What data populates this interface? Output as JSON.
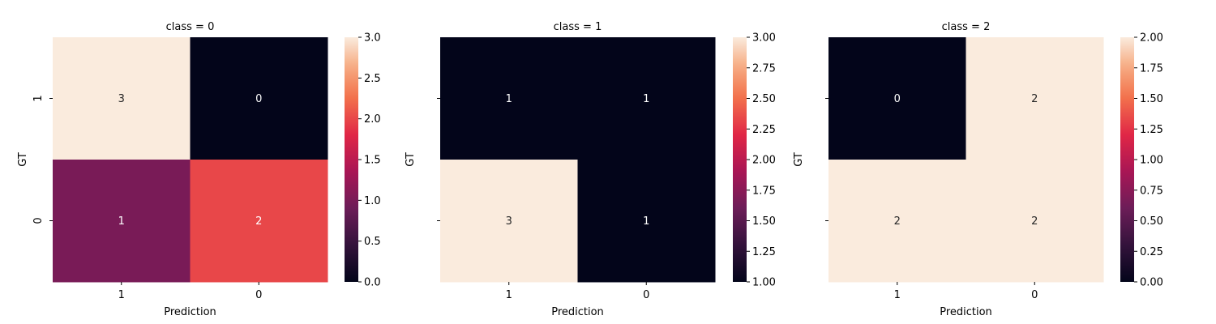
{
  "chart_data": [
    {
      "type": "heatmap",
      "title": "class = 0",
      "xlabel": "Prediction",
      "ylabel": "GT",
      "x_categories": [
        "1",
        "0"
      ],
      "y_categories": [
        "1",
        "0"
      ],
      "values": [
        [
          3,
          0
        ],
        [
          1,
          2
        ]
      ],
      "colorbar": {
        "min": 0.0,
        "max": 3.0,
        "ticks": [
          "0.0",
          "0.5",
          "1.0",
          "1.5",
          "2.0",
          "2.5",
          "3.0"
        ]
      },
      "colormap": "rocket"
    },
    {
      "type": "heatmap",
      "title": "class = 1",
      "xlabel": "Prediction",
      "ylabel": "GT",
      "x_categories": [
        "1",
        "0"
      ],
      "y_categories": [
        "",
        ""
      ],
      "values": [
        [
          1,
          1
        ],
        [
          3,
          1
        ]
      ],
      "colorbar": {
        "min": 1.0,
        "max": 3.0,
        "ticks": [
          "1.00",
          "1.25",
          "1.50",
          "1.75",
          "2.00",
          "2.25",
          "2.50",
          "2.75",
          "3.00"
        ]
      },
      "colormap": "rocket"
    },
    {
      "type": "heatmap",
      "title": "class = 2",
      "xlabel": "Prediction",
      "ylabel": "GT",
      "x_categories": [
        "1",
        "0"
      ],
      "y_categories": [
        "",
        ""
      ],
      "values": [
        [
          0,
          2
        ],
        [
          2,
          2
        ]
      ],
      "colorbar": {
        "min": 0.0,
        "max": 2.0,
        "ticks": [
          "0.00",
          "0.25",
          "0.50",
          "0.75",
          "1.00",
          "1.25",
          "1.50",
          "1.75",
          "2.00"
        ]
      },
      "colormap": "rocket"
    }
  ]
}
